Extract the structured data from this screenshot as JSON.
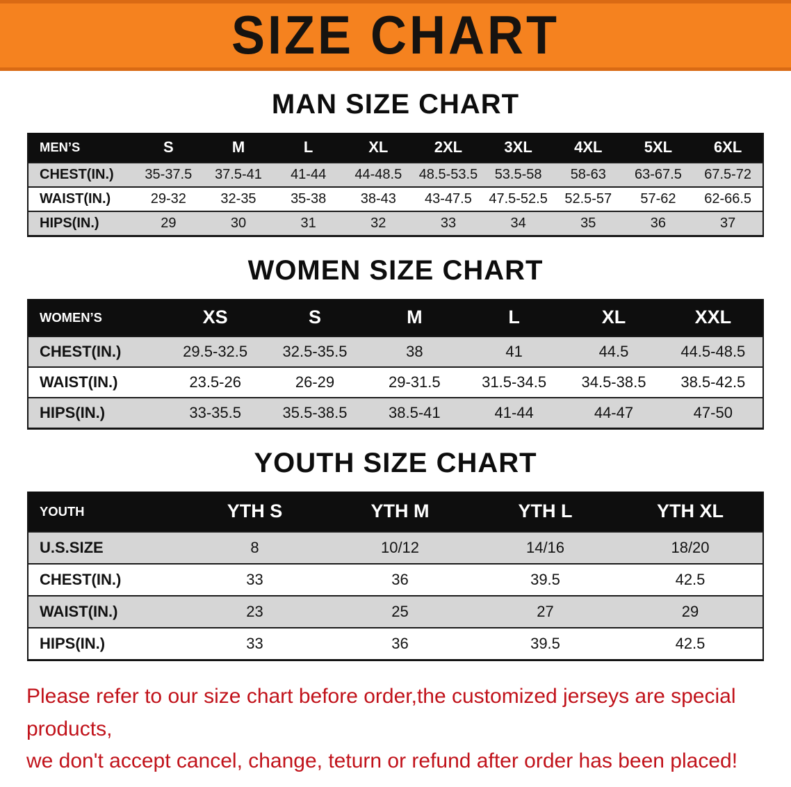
{
  "banner": {
    "title": "SIZE CHART",
    "bg_color": "#f5821f",
    "text_color": "#161310"
  },
  "sections": [
    {
      "id": "men",
      "heading": "MAN SIZE CHART",
      "columns": [
        "MEN’S",
        "S",
        "M",
        "L",
        "XL",
        "2XL",
        "3XL",
        "4XL",
        "5XL",
        "6XL"
      ],
      "rows": [
        {
          "label": "CHEST(IN.)",
          "values": [
            "35-37.5",
            "37.5-41",
            "41-44",
            "44-48.5",
            "48.5-53.5",
            "53.5-58",
            "58-63",
            "63-67.5",
            "67.5-72"
          ]
        },
        {
          "label": "WAIST(IN.)",
          "values": [
            "29-32",
            "32-35",
            "35-38",
            "38-43",
            "43-47.5",
            "47.5-52.5",
            "52.5-57",
            "57-62",
            "62-66.5"
          ]
        },
        {
          "label": "HIPS(IN.)",
          "values": [
            "29",
            "30",
            "31",
            "32",
            "33",
            "34",
            "35",
            "36",
            "37"
          ]
        }
      ]
    },
    {
      "id": "women",
      "heading": "WOMEN SIZE CHART",
      "columns": [
        "WOMEN’S",
        "XS",
        "S",
        "M",
        "L",
        "XL",
        "XXL"
      ],
      "rows": [
        {
          "label": "CHEST(IN.)",
          "values": [
            "29.5-32.5",
            "32.5-35.5",
            "38",
            "41",
            "44.5",
            "44.5-48.5"
          ]
        },
        {
          "label": "WAIST(IN.)",
          "values": [
            "23.5-26",
            "26-29",
            "29-31.5",
            "31.5-34.5",
            "34.5-38.5",
            "38.5-42.5"
          ]
        },
        {
          "label": "HIPS(IN.)",
          "values": [
            "33-35.5",
            "35.5-38.5",
            "38.5-41",
            "41-44",
            "44-47",
            "47-50"
          ]
        }
      ]
    },
    {
      "id": "youth",
      "heading": "YOUTH SIZE CHART",
      "columns": [
        "YOUTH",
        "YTH S",
        "YTH M",
        "YTH L",
        "YTH XL"
      ],
      "rows": [
        {
          "label": "U.S.SIZE",
          "values": [
            "8",
            "10/12",
            "14/16",
            "18/20"
          ]
        },
        {
          "label": "CHEST(IN.)",
          "values": [
            "33",
            "36",
            "39.5",
            "42.5"
          ]
        },
        {
          "label": "WAIST(IN.)",
          "values": [
            "23",
            "25",
            "27",
            "29"
          ]
        },
        {
          "label": "HIPS(IN.)",
          "values": [
            "33",
            "36",
            "39.5",
            "42.5"
          ]
        }
      ]
    }
  ],
  "disclaimer": {
    "text_color": "#c1121a",
    "lines": [
      "Please refer to our size chart before order,the customized jerseys are special products,",
      "we don't accept cancel, change, teturn or refund after order has been placed!"
    ]
  }
}
